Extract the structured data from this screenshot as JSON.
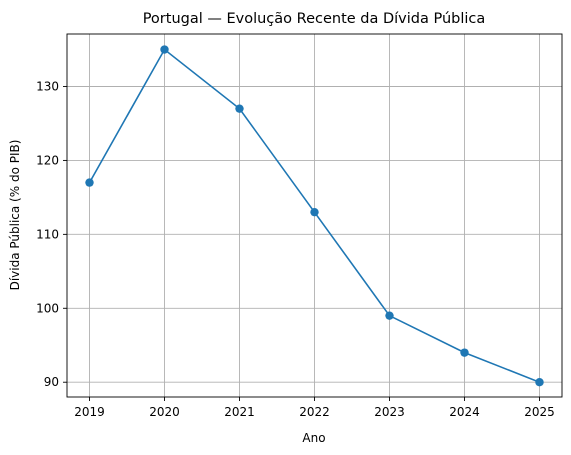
{
  "chart_data": {
    "type": "line",
    "title": "Portugal — Evolução Recente da Dívida Pública",
    "xlabel": "Ano",
    "ylabel": "Dívida Pública (% do PIB)",
    "x": [
      2019,
      2020,
      2021,
      2022,
      2023,
      2024,
      2025
    ],
    "series": [
      {
        "values": [
          117,
          135,
          127,
          113,
          99,
          94,
          90
        ],
        "color": "#1f77b4"
      }
    ],
    "xticks": [
      "2019",
      "2020",
      "2021",
      "2022",
      "2023",
      "2024",
      "2025"
    ],
    "yticks": [
      90,
      100,
      110,
      120,
      130
    ],
    "xlim": [
      2018.7,
      2025.3
    ],
    "ylim": [
      88.0,
      137.1
    ],
    "grid": true,
    "marker": "circle"
  }
}
